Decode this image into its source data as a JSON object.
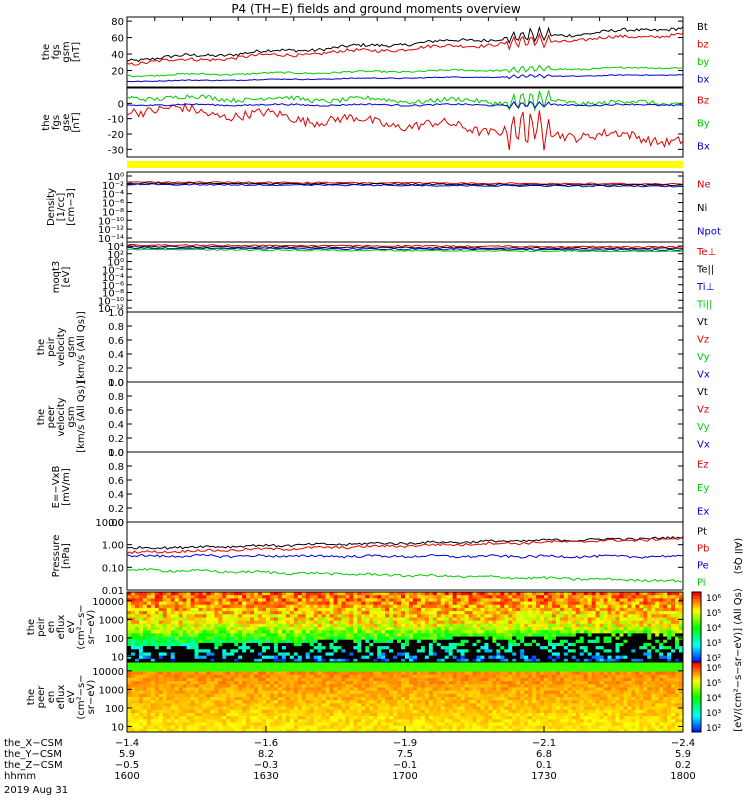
{
  "title": "P4 (TH−E) fields and ground moments overview",
  "date_label": "2019 Aug 31",
  "colors": {
    "black": "#000000",
    "red": "#e00000",
    "green": "#00cc00",
    "blue": "#0000cc",
    "yellow": "#ffff00"
  },
  "chart_data": [
    {
      "type": "line",
      "ylabel": [
        "the",
        "fgs",
        "gsm",
        "[nT]"
      ],
      "ylim": [
        0,
        85
      ],
      "yticks": [
        20,
        40,
        60,
        80
      ],
      "series": [
        {
          "name": "Bt",
          "color": "black",
          "start": 33,
          "end": 72,
          "wobble": 4
        },
        {
          "name": "bz",
          "color": "red",
          "start": 29,
          "end": 64,
          "wobble": 4
        },
        {
          "name": "by",
          "color": "green",
          "start": 14,
          "end": 24,
          "wobble": 2
        },
        {
          "name": "bx",
          "color": "blue",
          "start": 7,
          "end": 15,
          "wobble": 1
        }
      ]
    },
    {
      "type": "line",
      "ylabel": [
        "the",
        "fgs",
        "gse",
        "[nT]"
      ],
      "ylim": [
        -35,
        10
      ],
      "yticks": [
        0,
        -10,
        -20,
        -30
      ],
      "series": [
        {
          "name": "Bz",
          "color": "red",
          "start": -3,
          "end": -24,
          "wobble": 6
        },
        {
          "name": "By",
          "color": "green",
          "start": 4,
          "end": 0,
          "wobble": 3
        },
        {
          "name": "Bx",
          "color": "blue",
          "start": -1,
          "end": -1,
          "wobble": 1
        }
      ]
    },
    {
      "type": "line",
      "ylabel": [
        "Density",
        "[1/cc]",
        "[cm−3]"
      ],
      "ylim_exp": [
        -14,
        2
      ],
      "ytick_labels": [
        "10⁰",
        "10⁻²",
        "10⁻⁴",
        "10⁻⁶",
        "10⁻⁸",
        "10⁻¹⁰",
        "10⁻¹²",
        "10⁻¹⁴"
      ],
      "series": [
        {
          "name": "Ne",
          "color": "red"
        },
        {
          "name": "Ni",
          "color": "black"
        },
        {
          "name": "Npot",
          "color": "blue"
        }
      ]
    },
    {
      "type": "line",
      "ylabel": [
        "moqt3",
        "[eV]"
      ],
      "ylim_exp": [
        -14,
        4
      ],
      "ytick_labels": [
        "10⁴",
        "10²",
        "10⁰",
        "10⁻²",
        "10⁻⁴",
        "10⁻⁶",
        "10⁻⁸",
        "10⁻¹⁰",
        "10⁻¹²"
      ],
      "series": [
        {
          "name": "Te⊥",
          "color": "red"
        },
        {
          "name": "Te||",
          "color": "black"
        },
        {
          "name": "Ti⊥",
          "color": "blue"
        },
        {
          "name": "Ti||",
          "color": "green"
        }
      ]
    },
    {
      "type": "line",
      "ylabel": [
        "the",
        "peir",
        "velocity",
        "gsm",
        "[km/s (All Qs)]"
      ],
      "ylim": [
        0,
        1
      ],
      "ytick_labels": [
        "0.0",
        "0.2",
        "0.4",
        "0.6",
        "0.8",
        "1.0"
      ],
      "series": [
        {
          "name": "Vt",
          "color": "black"
        },
        {
          "name": "Vz",
          "color": "red"
        },
        {
          "name": "Vy",
          "color": "green"
        },
        {
          "name": "Vx",
          "color": "blue"
        }
      ]
    },
    {
      "type": "line",
      "ylabel": [
        "the",
        "peer",
        "velocity",
        "gsm",
        "[km/s (All Qs)]"
      ],
      "ylim": [
        0,
        1
      ],
      "ytick_labels": [
        "0.0",
        "0.2",
        "0.4",
        "0.6",
        "0.8",
        "1.0"
      ],
      "series": [
        {
          "name": "Vt",
          "color": "black"
        },
        {
          "name": "Vz",
          "color": "red"
        },
        {
          "name": "Vy",
          "color": "green"
        },
        {
          "name": "Vx",
          "color": "blue"
        }
      ]
    },
    {
      "type": "line",
      "ylabel": [
        "E=−VxB",
        "[mV/m]"
      ],
      "ylim": [
        0,
        1
      ],
      "ytick_labels": [
        "0.0",
        "0.2",
        "0.4",
        "0.6",
        "0.8",
        "1.0"
      ],
      "series": [
        {
          "name": "Ez",
          "color": "red"
        },
        {
          "name": "Ey",
          "color": "green"
        },
        {
          "name": "Ex",
          "color": "blue"
        }
      ]
    },
    {
      "type": "line",
      "ylabel": [
        "Pressure",
        "[nPa]"
      ],
      "right_label": "(All Qs)",
      "ylim_log": [
        0.01,
        10
      ],
      "ytick_labels": [
        "10.00",
        "1.00",
        "0.10",
        "0.01"
      ],
      "series": [
        {
          "name": "Pt",
          "color": "black",
          "start": 0.7,
          "end": 2.0
        },
        {
          "name": "Pb",
          "color": "red",
          "start": 0.45,
          "end": 1.8
        },
        {
          "name": "Pe",
          "color": "blue",
          "start": 0.32,
          "end": 0.3
        },
        {
          "name": "Pi",
          "color": "green",
          "start": 0.08,
          "end": 0.025
        }
      ]
    },
    {
      "type": "heatmap",
      "ylabel": [
        "the",
        "peir",
        "en",
        "eflux",
        "eV",
        "(cm²−s−",
        "sr−eV)"
      ],
      "ylim_log": [
        5,
        30000
      ],
      "ytick_labels": [
        "10000",
        "1000",
        "100",
        "10"
      ],
      "colorbar_labels": [
        "10⁶",
        "10⁵",
        "10⁴",
        "10³",
        "10²"
      ]
    },
    {
      "type": "heatmap",
      "ylabel": [
        "the",
        "peer",
        "en",
        "eflux",
        "eV",
        "(cm²−s−",
        "sr−eV)"
      ],
      "ylim_log": [
        5,
        30000
      ],
      "ytick_labels": [
        "10000",
        "1000",
        "100",
        "10"
      ],
      "colorbar_labels": [
        "10⁶",
        "10⁵",
        "10⁴",
        "10³",
        "10²"
      ]
    }
  ],
  "colorbar_unit": "[eV/(cm²−s−sr−eV)] (All Qs)",
  "x_axis": {
    "row_labels": [
      "the_X−CSM",
      "the_Y−CSM",
      "the_Z−CSM",
      "hhmm"
    ],
    "columns": [
      [
        "−1.4",
        "5.9",
        "−0.5",
        "1600"
      ],
      [
        "−1.6",
        "8.2",
        "−0.3",
        "1630"
      ],
      [
        "−1.9",
        "7.5",
        "−0.1",
        "1700"
      ],
      [
        "−2.1",
        "6.8",
        "0.1",
        "1730"
      ],
      [
        "−2.4",
        "5.9",
        "0.2",
        "1800"
      ]
    ]
  }
}
